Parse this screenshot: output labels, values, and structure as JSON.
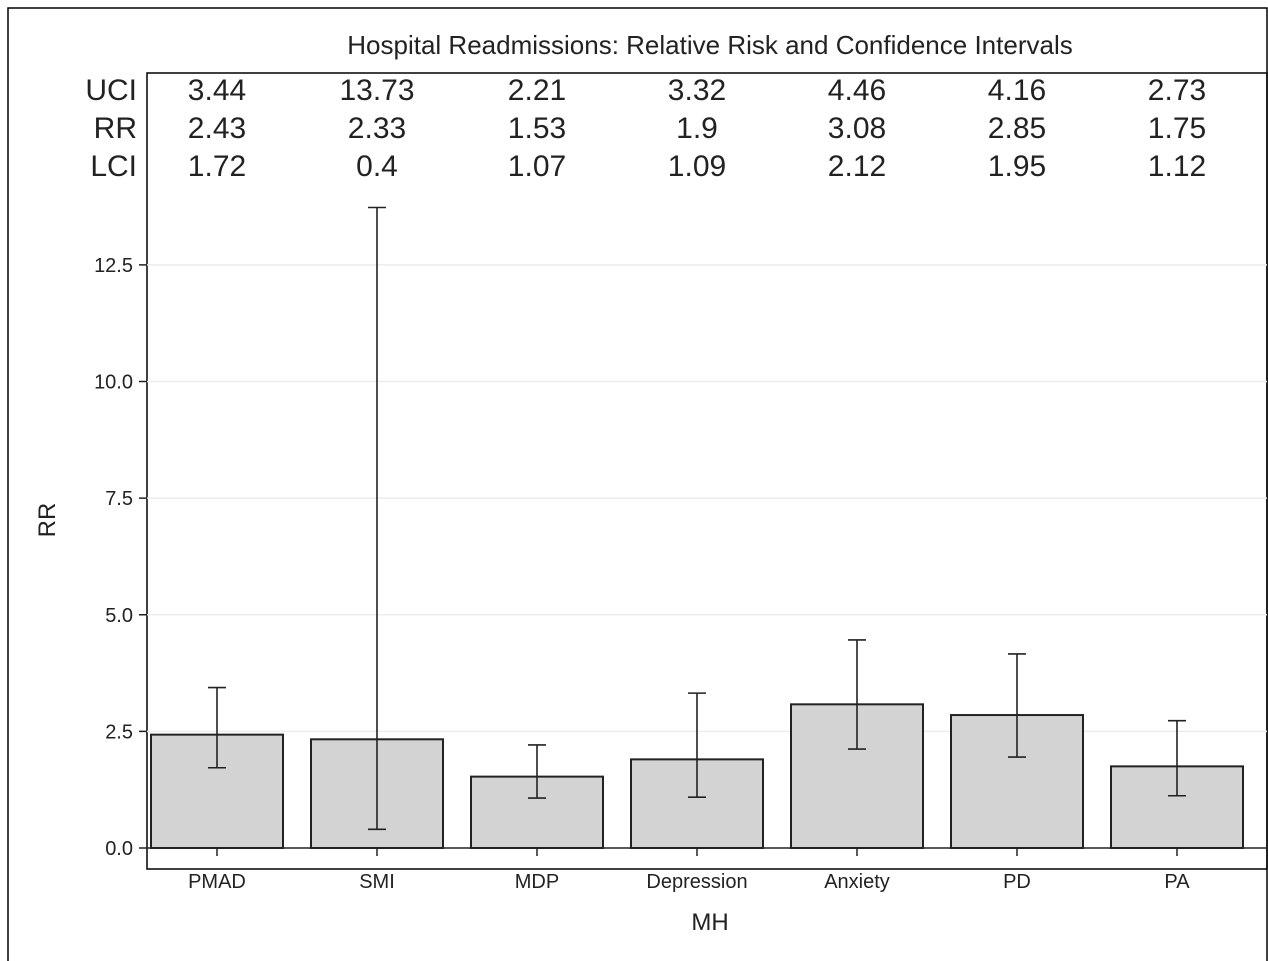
{
  "chart_data": {
    "type": "bar",
    "title": "Hospital Readmissions: Relative Risk and Confidence Intervals",
    "xlabel": "MH",
    "ylabel": "RR",
    "categories": [
      "PMAD",
      "SMI",
      "MDP",
      "Depression",
      "Anxiety",
      "PD",
      "PA"
    ],
    "values": [
      2.43,
      2.33,
      1.53,
      1.9,
      3.08,
      2.85,
      1.75
    ],
    "error_bars": {
      "lower": [
        1.72,
        0.4,
        1.07,
        1.09,
        2.12,
        1.95,
        1.12
      ],
      "upper": [
        3.44,
        13.73,
        2.21,
        3.32,
        4.46,
        4.16,
        2.73
      ]
    },
    "stat_table": {
      "row_labels": [
        "UCI",
        "RR",
        "LCI"
      ],
      "rows": [
        [
          "3.44",
          "13.73",
          "2.21",
          "3.32",
          "4.46",
          "4.16",
          "2.73"
        ],
        [
          "2.43",
          "2.33",
          "1.53",
          "1.9",
          "3.08",
          "2.85",
          "1.75"
        ],
        [
          "1.72",
          "0.4",
          "1.07",
          "1.09",
          "2.12",
          "1.95",
          "1.12"
        ]
      ]
    },
    "yticks": [
      "0.0",
      "2.5",
      "5.0",
      "7.5",
      "10.0",
      "12.5"
    ],
    "ylim": [
      0,
      14
    ],
    "grid": true,
    "legend": "none"
  }
}
